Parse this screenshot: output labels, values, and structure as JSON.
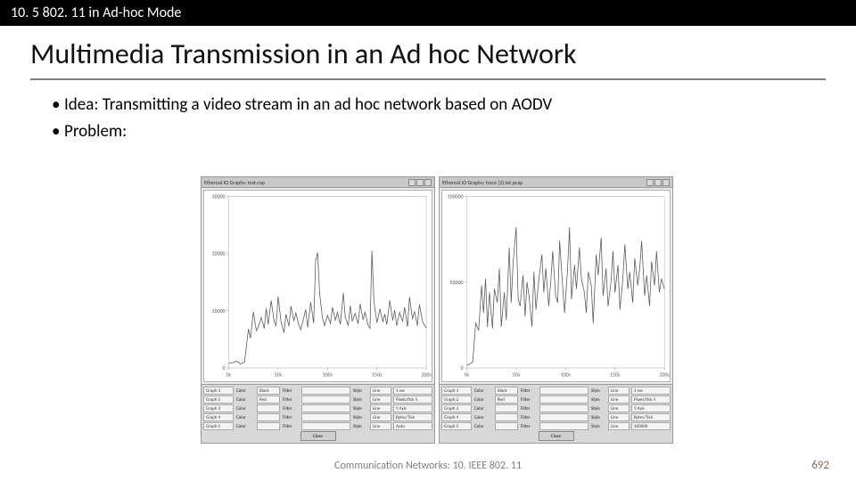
{
  "topbar": "10. 5 802. 11 in Ad-hoc Mode",
  "title": "Multimedia Transmission in an Ad hoc Network",
  "bullets": [
    "Idea: Transmitting a video stream in an ad hoc network based on AODV",
    "Problem:"
  ],
  "footer_center": "Communication Networks: 10. IEEE 802. 11",
  "page_number": "692",
  "left_chart": {
    "titlebar": "Ethereal IO Graphs: test.cap",
    "type": "line",
    "stroke": "#5a5a5a",
    "stroke_width": 0.8,
    "background": "#ffffff",
    "grid_color": "#cccccc",
    "xlim": [
      0,
      200
    ],
    "ylim": [
      0,
      30000
    ],
    "yticks": [
      0,
      10000,
      20000,
      30000
    ],
    "xticks": [
      0,
      50,
      100,
      150,
      200
    ],
    "xtick_labels": [
      "0s",
      "50s",
      "100s",
      "150s",
      "200s"
    ],
    "points": [
      [
        0,
        800
      ],
      [
        4,
        900
      ],
      [
        8,
        1200
      ],
      [
        12,
        700
      ],
      [
        16,
        1000
      ],
      [
        20,
        6800
      ],
      [
        22,
        5200
      ],
      [
        25,
        9800
      ],
      [
        28,
        6500
      ],
      [
        30,
        7200
      ],
      [
        33,
        8800
      ],
      [
        36,
        6900
      ],
      [
        38,
        10400
      ],
      [
        40,
        7600
      ],
      [
        43,
        11800
      ],
      [
        46,
        8100
      ],
      [
        48,
        7400
      ],
      [
        50,
        12500
      ],
      [
        53,
        8000
      ],
      [
        56,
        6200
      ],
      [
        58,
        9400
      ],
      [
        61,
        7300
      ],
      [
        63,
        10800
      ],
      [
        66,
        8200
      ],
      [
        68,
        9600
      ],
      [
        71,
        7500
      ],
      [
        73,
        6700
      ],
      [
        76,
        8800
      ],
      [
        78,
        10200
      ],
      [
        80,
        7100
      ],
      [
        83,
        11500
      ],
      [
        86,
        7800
      ],
      [
        88,
        18700
      ],
      [
        90,
        20200
      ],
      [
        92,
        13000
      ],
      [
        95,
        8700
      ],
      [
        97,
        7400
      ],
      [
        100,
        9200
      ],
      [
        103,
        7800
      ],
      [
        105,
        10600
      ],
      [
        108,
        8300
      ],
      [
        110,
        9700
      ],
      [
        113,
        7600
      ],
      [
        116,
        13100
      ],
      [
        118,
        8900
      ],
      [
        121,
        7400
      ],
      [
        123,
        10900
      ],
      [
        125,
        8200
      ],
      [
        128,
        9500
      ],
      [
        131,
        7700
      ],
      [
        133,
        11200
      ],
      [
        136,
        8400
      ],
      [
        138,
        9800
      ],
      [
        141,
        7500
      ],
      [
        143,
        6900
      ],
      [
        145,
        20500
      ],
      [
        147,
        11600
      ],
      [
        150,
        7900
      ],
      [
        153,
        10300
      ],
      [
        156,
        8100
      ],
      [
        158,
        9400
      ],
      [
        160,
        7600
      ],
      [
        163,
        11800
      ],
      [
        166,
        8300
      ],
      [
        168,
        10100
      ],
      [
        170,
        7400
      ],
      [
        173,
        9700
      ],
      [
        176,
        8100
      ],
      [
        178,
        10600
      ],
      [
        181,
        7200
      ],
      [
        183,
        12400
      ],
      [
        186,
        8500
      ],
      [
        188,
        9900
      ],
      [
        191,
        7400
      ],
      [
        193,
        11100
      ],
      [
        196,
        8200
      ],
      [
        198,
        7500
      ],
      [
        200,
        7000
      ]
    ],
    "controls": {
      "rows": [
        {
          "label": "Graph 1",
          "color": "Black",
          "filter": "",
          "style": "Line",
          "tick": "1 sec"
        },
        {
          "label": "Graph 2",
          "color": "Red",
          "filter": "",
          "style": "Line",
          "pps": "Pixels/tick  5"
        },
        {
          "label": "Graph 3",
          "color": "",
          "filter": "",
          "style": "Line",
          "yaxis": "Y Axis"
        },
        {
          "label": "Graph 4",
          "color": "",
          "filter": "",
          "style": "Line",
          "unit": "Bytes/Tick"
        },
        {
          "label": "Graph 5",
          "color": "",
          "filter": "",
          "style": "Line",
          "scale": "Auto"
        }
      ],
      "close": "Close"
    }
  },
  "right_chart": {
    "titlebar": "Ethereal IO Graphs: trace (2).txt.pcap",
    "type": "line",
    "stroke": "#5a5a5a",
    "stroke_width": 0.8,
    "background": "#ffffff",
    "grid_color": "#cccccc",
    "xlim": [
      0,
      200
    ],
    "ylim": [
      0,
      100000
    ],
    "yticks": [
      0,
      50000,
      100000
    ],
    "xticks": [
      0,
      50,
      100,
      150,
      200
    ],
    "xtick_labels": [
      "0s",
      "50s",
      "100s",
      "150s",
      "200s"
    ],
    "points": [
      [
        0,
        1500
      ],
      [
        3,
        2200
      ],
      [
        6,
        3400
      ],
      [
        9,
        26000
      ],
      [
        12,
        22000
      ],
      [
        15,
        48000
      ],
      [
        17,
        32000
      ],
      [
        19,
        52000
      ],
      [
        21,
        24000
      ],
      [
        23,
        44000
      ],
      [
        26,
        23000
      ],
      [
        28,
        46000
      ],
      [
        31,
        38000
      ],
      [
        33,
        58000
      ],
      [
        35,
        24000
      ],
      [
        38,
        44000
      ],
      [
        40,
        28000
      ],
      [
        43,
        70000
      ],
      [
        45,
        38000
      ],
      [
        47,
        62000
      ],
      [
        50,
        82000
      ],
      [
        52,
        40000
      ],
      [
        54,
        36000
      ],
      [
        57,
        54000
      ],
      [
        59,
        30000
      ],
      [
        61,
        50000
      ],
      [
        63,
        42000
      ],
      [
        66,
        24000
      ],
      [
        68,
        56000
      ],
      [
        70,
        34000
      ],
      [
        73,
        52000
      ],
      [
        76,
        66000
      ],
      [
        78,
        44000
      ],
      [
        80,
        58000
      ],
      [
        83,
        36000
      ],
      [
        85,
        50000
      ],
      [
        87,
        68000
      ],
      [
        90,
        42000
      ],
      [
        92,
        38000
      ],
      [
        94,
        74000
      ],
      [
        97,
        48000
      ],
      [
        99,
        32000
      ],
      [
        102,
        58000
      ],
      [
        104,
        82000
      ],
      [
        106,
        40000
      ],
      [
        109,
        60000
      ],
      [
        111,
        46000
      ],
      [
        114,
        70000
      ],
      [
        116,
        52000
      ],
      [
        119,
        44000
      ],
      [
        121,
        32000
      ],
      [
        123,
        56000
      ],
      [
        126,
        48000
      ],
      [
        128,
        26000
      ],
      [
        131,
        66000
      ],
      [
        133,
        54000
      ],
      [
        136,
        76000
      ],
      [
        138,
        42000
      ],
      [
        141,
        58000
      ],
      [
        143,
        36000
      ],
      [
        146,
        50000
      ],
      [
        148,
        68000
      ],
      [
        150,
        44000
      ],
      [
        153,
        60000
      ],
      [
        155,
        34000
      ],
      [
        158,
        52000
      ],
      [
        160,
        72000
      ],
      [
        163,
        46000
      ],
      [
        165,
        56000
      ],
      [
        168,
        38000
      ],
      [
        170,
        64000
      ],
      [
        173,
        48000
      ],
      [
        175,
        58000
      ],
      [
        177,
        74000
      ],
      [
        180,
        42000
      ],
      [
        182,
        54000
      ],
      [
        185,
        36000
      ],
      [
        187,
        62000
      ],
      [
        190,
        48000
      ],
      [
        192,
        68000
      ],
      [
        195,
        44000
      ],
      [
        197,
        52000
      ],
      [
        200,
        46000
      ]
    ],
    "controls": {
      "rows": [
        {
          "label": "Graph 1",
          "color": "Black",
          "filter": "",
          "style": "Line",
          "tick": "1 sec"
        },
        {
          "label": "Graph 2",
          "color": "Red",
          "filter": "",
          "style": "Line",
          "pps": "Pixels/tick  5"
        },
        {
          "label": "Graph 3",
          "color": "",
          "filter": "",
          "style": "Line",
          "yaxis": "Y Axis"
        },
        {
          "label": "Graph 4",
          "color": "",
          "filter": "",
          "style": "Line",
          "unit": "Bytes/Tick"
        },
        {
          "label": "Graph 5",
          "color": "",
          "filter": "",
          "style": "Line",
          "scale": "100000"
        }
      ],
      "close": "Close"
    }
  }
}
